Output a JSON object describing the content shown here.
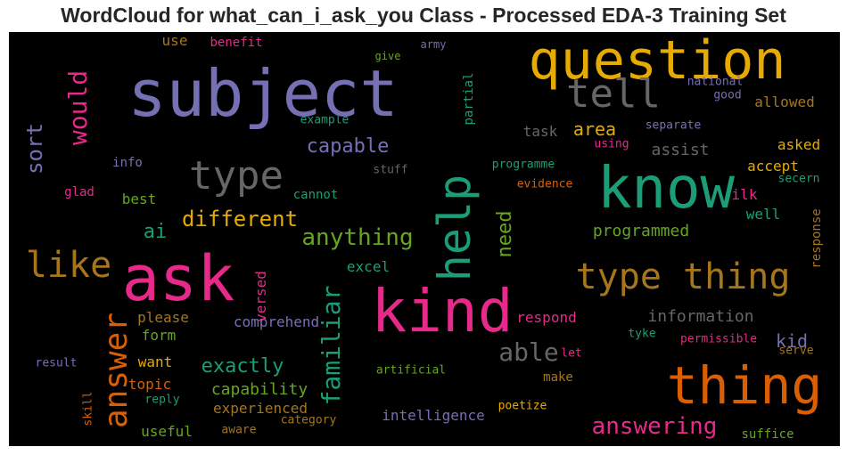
{
  "chart_data": {
    "type": "wordcloud",
    "title": "WordCloud for what_can_i_ask_you Class - Processed EDA-3 Training Set",
    "background": "#000000",
    "colors": {
      "purple": "#7570b3",
      "teal": "#1b9e77",
      "orange": "#d95f02",
      "pink": "#e7298a",
      "gold": "#e6ab02",
      "brown": "#a6761d",
      "gray": "#666666",
      "green": "#66a61e"
    },
    "words": [
      {
        "text": "subject",
        "color": "#7570b3"
      },
      {
        "text": "question",
        "color": "#e6ab02"
      },
      {
        "text": "know",
        "color": "#1b9e77"
      },
      {
        "text": "ask",
        "color": "#e7298a"
      },
      {
        "text": "kind",
        "color": "#e7298a"
      },
      {
        "text": "thing",
        "color": "#d95f02"
      },
      {
        "text": "help",
        "color": "#1b9e77"
      },
      {
        "text": "tell",
        "color": "#666666"
      },
      {
        "text": "type thing",
        "color": "#a6761d"
      },
      {
        "text": "type",
        "color": "#666666"
      },
      {
        "text": "like",
        "color": "#a6761d"
      },
      {
        "text": "answer",
        "color": "#d95f02"
      },
      {
        "text": "would",
        "color": "#e7298a"
      },
      {
        "text": "familiar",
        "color": "#1b9e77"
      },
      {
        "text": "anything",
        "color": "#66a61e"
      },
      {
        "text": "answering",
        "color": "#e7298a"
      },
      {
        "text": "able",
        "color": "#666666"
      },
      {
        "text": "different",
        "color": "#e6ab02"
      },
      {
        "text": "capable",
        "color": "#7570b3"
      },
      {
        "text": "sort",
        "color": "#7570b3"
      },
      {
        "text": "exactly",
        "color": "#1b9e77"
      },
      {
        "text": "need",
        "color": "#66a61e"
      },
      {
        "text": "ai",
        "color": "#1b9e77"
      },
      {
        "text": "area",
        "color": "#e6ab02"
      },
      {
        "text": "programmed",
        "color": "#66a61e"
      },
      {
        "text": "information",
        "color": "#666666"
      },
      {
        "text": "capability",
        "color": "#66a61e"
      },
      {
        "text": "kid",
        "color": "#7570b3"
      },
      {
        "text": "assist",
        "color": "#666666"
      },
      {
        "text": "allowed",
        "color": "#a6761d"
      },
      {
        "text": "intelligence",
        "color": "#7570b3"
      },
      {
        "text": "experienced",
        "color": "#a6761d"
      },
      {
        "text": "please",
        "color": "#a6761d"
      },
      {
        "text": "excel",
        "color": "#1b9e77"
      },
      {
        "text": "accept",
        "color": "#e6ab02"
      },
      {
        "text": "asked",
        "color": "#e6ab02"
      },
      {
        "text": "comprehend",
        "color": "#7570b3"
      },
      {
        "text": "topic",
        "color": "#d95f02"
      },
      {
        "text": "want",
        "color": "#e6ab02"
      },
      {
        "text": "respond",
        "color": "#e7298a"
      },
      {
        "text": "useful",
        "color": "#66a61e"
      },
      {
        "text": "versed",
        "color": "#e7298a"
      },
      {
        "text": "response",
        "color": "#a6761d"
      },
      {
        "text": "partial",
        "color": "#1b9e77"
      },
      {
        "text": "well",
        "color": "#1b9e77"
      },
      {
        "text": "ilk",
        "color": "#e7298a"
      },
      {
        "text": "task",
        "color": "#666666"
      },
      {
        "text": "form",
        "color": "#66a61e"
      },
      {
        "text": "make",
        "color": "#a6761d"
      },
      {
        "text": "cannot",
        "color": "#1b9e77"
      },
      {
        "text": "best",
        "color": "#66a61e"
      },
      {
        "text": "glad",
        "color": "#e7298a"
      },
      {
        "text": "info",
        "color": "#7570b3"
      },
      {
        "text": "use",
        "color": "#a6761d"
      },
      {
        "text": "benefit",
        "color": "#e7298a"
      },
      {
        "text": "suffice",
        "color": "#66a61e"
      },
      {
        "text": "national",
        "color": "#7570b3"
      },
      {
        "text": "good",
        "color": "#7570b3"
      },
      {
        "text": "separate",
        "color": "#7570b3"
      },
      {
        "text": "using",
        "color": "#e7298a"
      },
      {
        "text": "programme",
        "color": "#1b9e77"
      },
      {
        "text": "evidence",
        "color": "#d95f02"
      },
      {
        "text": "secern",
        "color": "#1b9e77"
      },
      {
        "text": "tyke",
        "color": "#1b9e77"
      },
      {
        "text": "permissible",
        "color": "#e7298a"
      },
      {
        "text": "serve",
        "color": "#a6761d"
      },
      {
        "text": "let",
        "color": "#e7298a"
      },
      {
        "text": "artificial",
        "color": "#66a61e"
      },
      {
        "text": "poetize",
        "color": "#e6ab02"
      },
      {
        "text": "category",
        "color": "#a6761d"
      },
      {
        "text": "aware",
        "color": "#a6761d"
      },
      {
        "text": "reply",
        "color": "#1b9e77"
      },
      {
        "text": "skill",
        "color": "#d95f02"
      },
      {
        "text": "result",
        "color": "#7570b3"
      },
      {
        "text": "stuff",
        "color": "#666666"
      },
      {
        "text": "example",
        "color": "#1b9e77"
      },
      {
        "text": "give",
        "color": "#66a61e"
      },
      {
        "text": "army",
        "color": "#7570b3"
      }
    ]
  }
}
